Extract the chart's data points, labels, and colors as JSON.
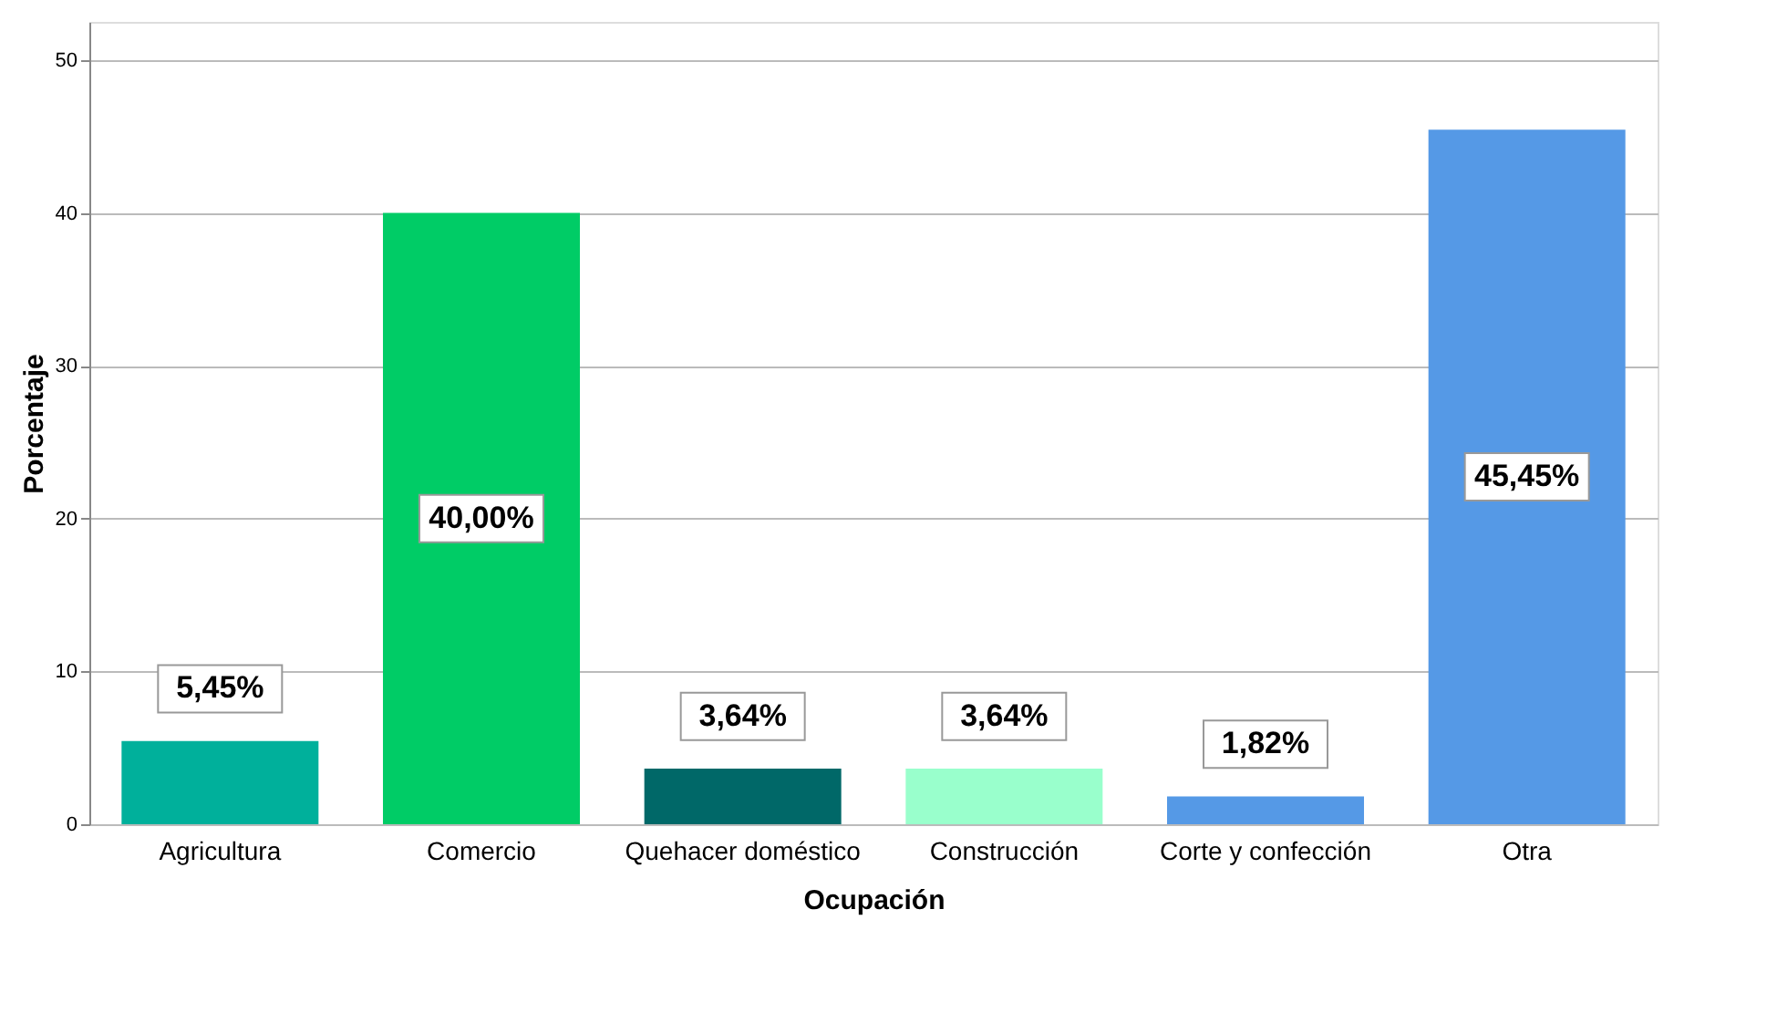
{
  "chart_data": {
    "type": "bar",
    "xlabel": "Ocupación",
    "ylabel": "Porcentaje",
    "categories": [
      "Agricultura",
      "Comercio",
      "Quehacer doméstico",
      "Construcción",
      "Corte y confección",
      "Otra"
    ],
    "values": [
      5.45,
      40.0,
      3.64,
      3.64,
      1.82,
      45.45
    ],
    "colors": [
      "#00b09b",
      "#00cc66",
      "#006868",
      "#99ffcc",
      "#5599e6",
      "#5599e6"
    ],
    "value_labels": [
      "5,45%",
      "40,00%",
      "3,64%",
      "3,64%",
      "1,82%",
      "45,45%"
    ],
    "ylim": [
      0,
      52.5
    ],
    "yticks": [
      0,
      10,
      20,
      30,
      40,
      50
    ],
    "grid": "y",
    "legend": false
  }
}
